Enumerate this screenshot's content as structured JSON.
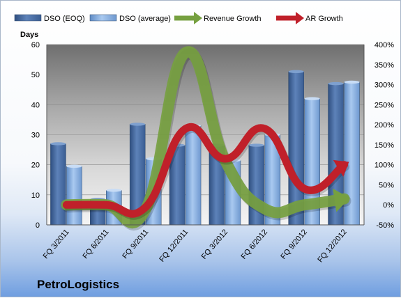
{
  "company_name": "PetroLogistics",
  "chart_data": {
    "type": "bar",
    "categories": [
      "FQ 3/2011",
      "FQ 6/2011",
      "FQ 9/2011",
      "FQ 12/2011",
      "FQ 3/2012",
      "FQ 6/2012",
      "FQ 9/2012",
      "FQ 12/2012"
    ],
    "series": [
      {
        "name": "DSO (EOQ)",
        "type": "bar",
        "axis": "left",
        "color": "#4f74a8",
        "values": [
          27,
          8.5,
          33.5,
          26.5,
          26.5,
          26.5,
          51,
          47
        ]
      },
      {
        "name": "DSO (average)",
        "type": "bar",
        "axis": "left",
        "color": "#8fb4e3",
        "values": [
          19.5,
          11.5,
          22,
          33,
          21.5,
          30,
          42,
          47.5
        ]
      },
      {
        "name": "Revenue Growth",
        "type": "line",
        "axis": "right",
        "unit": "%",
        "color": "#76a040",
        "values": [
          0,
          0,
          -10,
          380,
          110,
          -10,
          0,
          15
        ]
      },
      {
        "name": "AR Growth",
        "type": "line",
        "axis": "right",
        "unit": "%",
        "color": "#c0202a",
        "values": [
          0,
          0,
          -5,
          190,
          115,
          190,
          40,
          100
        ]
      }
    ],
    "y_left": {
      "label": "Days",
      "min": 0,
      "max": 60,
      "ticks": [
        "0",
        "10",
        "20",
        "30",
        "40",
        "50",
        "60"
      ]
    },
    "y_right": {
      "min": -50,
      "max": 400,
      "ticks": [
        "-50%",
        "0%",
        "50%",
        "100%",
        "150%",
        "200%",
        "250%",
        "300%",
        "350%",
        "400%"
      ]
    },
    "grid": true,
    "legend_position": "top"
  }
}
